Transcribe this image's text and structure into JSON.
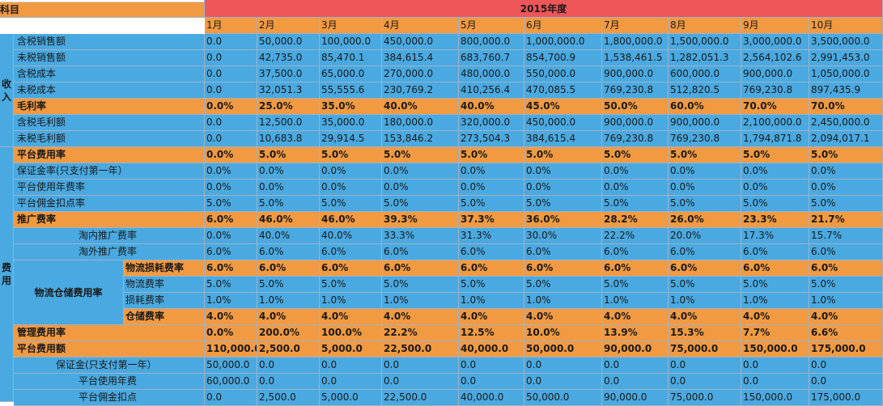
{
  "header": {
    "subject_label": "科目",
    "year_label": "2015年度",
    "months": [
      "1月",
      "2月",
      "3月",
      "4月",
      "5月",
      "6月",
      "7月",
      "8月",
      "9月",
      "10月"
    ]
  },
  "groups": {
    "income_label": "收入",
    "expense_label": "费用",
    "logistics_label": "物流仓储费用率"
  },
  "rows": [
    {
      "label": "含税销售额",
      "style": "blue",
      "values": [
        "0.0",
        "50,000.0",
        "100,000.0",
        "450,000.0",
        "800,000.0",
        "1,000,000.0",
        "1,800,000.0",
        "1,500,000.0",
        "3,000,000.0",
        "3,500,000.0"
      ]
    },
    {
      "label": "未税销售额",
      "style": "blue",
      "values": [
        "0.0",
        "42,735.0",
        "85,470.1",
        "384,615.4",
        "683,760.7",
        "854,700.9",
        "1,538,461.5",
        "1,282,051.3",
        "2,564,102.6",
        "2,991,453.0"
      ]
    },
    {
      "label": "含税成本",
      "style": "blue",
      "values": [
        "0.0",
        "37,500.0",
        "65,000.0",
        "270,000.0",
        "480,000.0",
        "550,000.0",
        "900,000.0",
        "600,000.0",
        "900,000.0",
        "1,050,000.0"
      ]
    },
    {
      "label": "未税成本",
      "style": "blue",
      "values": [
        "0.0",
        "32,051.3",
        "55,555.6",
        "230,769.2",
        "410,256.4",
        "470,085.5",
        "769,230.8",
        "512,820.5",
        "769,230.8",
        "897,435.9"
      ]
    },
    {
      "label": "毛利率",
      "style": "orange",
      "bold": true,
      "values": [
        "0.0%",
        "25.0%",
        "35.0%",
        "40.0%",
        "40.0%",
        "45.0%",
        "50.0%",
        "60.0%",
        "70.0%",
        "70.0%"
      ]
    },
    {
      "label": "含税毛利额",
      "style": "blue",
      "values": [
        "0.0",
        "12,500.0",
        "35,000.0",
        "180,000.0",
        "320,000.0",
        "450,000.0",
        "900,000.0",
        "900,000.0",
        "2,100,000.0",
        "2,450,000.0"
      ]
    },
    {
      "label": "未税毛利额",
      "style": "blue",
      "values": [
        "0.0",
        "10,683.8",
        "29,914.5",
        "153,846.2",
        "273,504.3",
        "384,615.4",
        "769,230.8",
        "769,230.8",
        "1,794,871.8",
        "2,094,017.1"
      ]
    },
    {
      "label": "平台费用率",
      "style": "orange",
      "bold": true,
      "values": [
        "0.0%",
        "5.0%",
        "5.0%",
        "5.0%",
        "5.0%",
        "5.0%",
        "5.0%",
        "5.0%",
        "5.0%",
        "5.0%"
      ]
    },
    {
      "label": "保证金率(只支付第一年）",
      "style": "blue",
      "values": [
        "0.0%",
        "0.0%",
        "0.0%",
        "0.0%",
        "0.0%",
        "0.0%",
        "0.0%",
        "0.0%",
        "0.0%",
        "0.0%"
      ]
    },
    {
      "label": "平台使用年费率",
      "style": "blue",
      "values": [
        "0.0%",
        "0.0%",
        "0.0%",
        "0.0%",
        "0.0%",
        "0.0%",
        "0.0%",
        "0.0%",
        "0.0%",
        "0.0%"
      ]
    },
    {
      "label": "平台佣金扣点率",
      "style": "blue",
      "values": [
        "5.0%",
        "5.0%",
        "5.0%",
        "5.0%",
        "5.0%",
        "5.0%",
        "5.0%",
        "5.0%",
        "5.0%",
        "5.0%"
      ]
    },
    {
      "label": "推广费率",
      "style": "orange",
      "bold": true,
      "values": [
        "6.0%",
        "46.0%",
        "46.0%",
        "39.3%",
        "37.3%",
        "36.0%",
        "28.2%",
        "26.0%",
        "23.3%",
        "21.7%"
      ]
    },
    {
      "label": "淘内推广费率",
      "style": "blue",
      "values": [
        "0.0%",
        "40.0%",
        "40.0%",
        "33.3%",
        "31.3%",
        "30.0%",
        "22.2%",
        "20.0%",
        "17.3%",
        "15.7%"
      ]
    },
    {
      "label": "淘外推广费率",
      "style": "blue",
      "values": [
        "6.0%",
        "6.0%",
        "6.0%",
        "6.0%",
        "6.0%",
        "6.0%",
        "6.0%",
        "6.0%",
        "6.0%",
        "6.0%"
      ]
    },
    {
      "label": "物流损耗费率",
      "style": "orange",
      "bold": true,
      "values": [
        "6.0%",
        "6.0%",
        "6.0%",
        "6.0%",
        "6.0%",
        "6.0%",
        "6.0%",
        "6.0%",
        "6.0%",
        "6.0%"
      ]
    },
    {
      "label": "物流费率",
      "style": "blue",
      "values": [
        "5.0%",
        "5.0%",
        "5.0%",
        "5.0%",
        "5.0%",
        "5.0%",
        "5.0%",
        "5.0%",
        "5.0%",
        "5.0%"
      ]
    },
    {
      "label": "损耗费率",
      "style": "blue",
      "values": [
        "1.0%",
        "1.0%",
        "1.0%",
        "1.0%",
        "1.0%",
        "1.0%",
        "1.0%",
        "1.0%",
        "1.0%",
        "1.0%"
      ]
    },
    {
      "label": "仓储费率",
      "style": "orange",
      "bold": true,
      "values": [
        "4.0%",
        "4.0%",
        "4.0%",
        "4.0%",
        "4.0%",
        "4.0%",
        "4.0%",
        "4.0%",
        "4.0%",
        "4.0%"
      ]
    },
    {
      "label": "管理费用率",
      "style": "orange",
      "bold": true,
      "values": [
        "0.0%",
        "200.0%",
        "100.0%",
        "22.2%",
        "12.5%",
        "10.0%",
        "13.9%",
        "15.3%",
        "7.7%",
        "6.6%"
      ]
    },
    {
      "label": "平台费用额",
      "style": "orange",
      "bold": true,
      "values": [
        "110,000.0",
        "2,500.0",
        "5,000.0",
        "22,500.0",
        "40,000.0",
        "50,000.0",
        "90,000.0",
        "75,000.0",
        "150,000.0",
        "175,000.0"
      ]
    },
    {
      "label": "保证金(只支付第一年）",
      "style": "blue",
      "values": [
        "50,000.0",
        "0.0",
        "0.0",
        "0.0",
        "0.0",
        "0.0",
        "0.0",
        "0.0",
        "0.0",
        "0.0"
      ]
    },
    {
      "label": "平台使用年费",
      "style": "blue",
      "values": [
        "60,000.0",
        "0.0",
        "0.0",
        "0.0",
        "0.0",
        "0.0",
        "0.0",
        "0.0",
        "0.0",
        "0.0"
      ]
    },
    {
      "label": "平台佣金扣点",
      "style": "blue",
      "values": [
        "0.0",
        "2,500.0",
        "5,000.0",
        "22,500.0",
        "40,000.0",
        "50,000.0",
        "90,000.0",
        "75,000.0",
        "150,000.0",
        "175,000.0"
      ]
    }
  ]
}
